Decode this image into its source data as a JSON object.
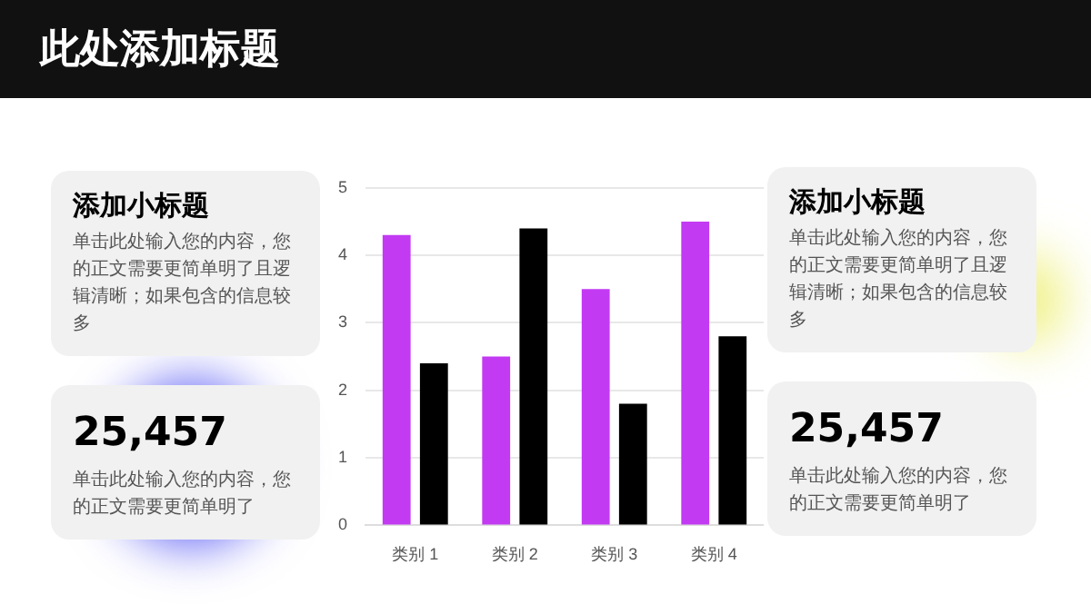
{
  "chart_data": {
    "type": "bar",
    "title": "此处添加标题",
    "categories": [
      "类别 1",
      "类别 2",
      "类别 3",
      "类别 4"
    ],
    "series": [
      {
        "color": "#c23af2",
        "values": [
          4.3,
          2.5,
          3.5,
          4.5
        ]
      },
      {
        "color": "#000000",
        "values": [
          2.4,
          4.4,
          1.8,
          2.8
        ]
      }
    ],
    "ylim": [
      0,
      5
    ],
    "yticks": [
      0,
      1,
      2,
      3,
      4,
      5
    ],
    "grid": "y",
    "legend": false,
    "annotations": [
      "添加小标题",
      "单击此处输入您的内容，您的正文需要更简单明了且逻辑清晰；如果包含的信息较多",
      "25,457",
      "单击此处输入您的内容，您的正文需要更简单明了",
      "添加小标题",
      "单击此处输入您的内容，您的正文需要更简单明了且逻辑清晰；如果包含的信息较多",
      "25,457",
      "单击此处输入您的内容，您的正文需要更简单明了"
    ]
  }
}
